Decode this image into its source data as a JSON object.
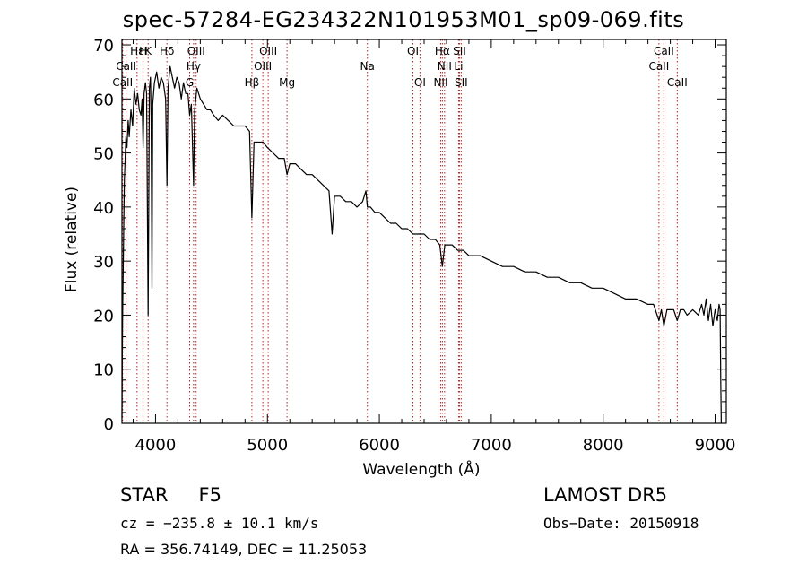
{
  "chart_data": {
    "type": "line",
    "title": "spec-57284-EG234322N101953M01_sp09-069.fits",
    "xlabel": "Wavelength (Å)",
    "ylabel": "Flux (relative)",
    "xlim": [
      3700,
      9100
    ],
    "ylim": [
      0,
      71
    ],
    "xticks": [
      4000,
      5000,
      6000,
      7000,
      8000,
      9000
    ],
    "yticks": [
      0,
      10,
      20,
      30,
      40,
      50,
      60,
      70
    ],
    "grid": false,
    "series": [
      {
        "points": [
          [
            3700,
            1
          ],
          [
            3705,
            18
          ],
          [
            3712,
            30
          ],
          [
            3722,
            45
          ],
          [
            3735,
            53
          ],
          [
            3745,
            51
          ],
          [
            3755,
            56
          ],
          [
            3765,
            53
          ],
          [
            3780,
            58
          ],
          [
            3795,
            55
          ],
          [
            3810,
            62
          ],
          [
            3825,
            59
          ],
          [
            3840,
            61
          ],
          [
            3855,
            58
          ],
          [
            3870,
            57
          ],
          [
            3880,
            60
          ],
          [
            3889,
            51
          ],
          [
            3898,
            61
          ],
          [
            3910,
            63
          ],
          [
            3920,
            61
          ],
          [
            3934,
            20
          ],
          [
            3945,
            62
          ],
          [
            3955,
            64
          ],
          [
            3960,
            57
          ],
          [
            3968,
            25
          ],
          [
            3975,
            59
          ],
          [
            3990,
            63
          ],
          [
            4010,
            65
          ],
          [
            4030,
            62
          ],
          [
            4050,
            64
          ],
          [
            4070,
            63
          ],
          [
            4090,
            60
          ],
          [
            4102,
            44
          ],
          [
            4112,
            62
          ],
          [
            4130,
            66
          ],
          [
            4150,
            64
          ],
          [
            4170,
            62
          ],
          [
            4190,
            64
          ],
          [
            4210,
            63
          ],
          [
            4230,
            60
          ],
          [
            4250,
            63
          ],
          [
            4270,
            61
          ],
          [
            4290,
            61
          ],
          [
            4305,
            57
          ],
          [
            4320,
            59
          ],
          [
            4340,
            44
          ],
          [
            4350,
            58
          ],
          [
            4370,
            62
          ],
          [
            4400,
            60
          ],
          [
            4430,
            59
          ],
          [
            4460,
            58
          ],
          [
            4490,
            58
          ],
          [
            4520,
            57
          ],
          [
            4560,
            56
          ],
          [
            4600,
            57
          ],
          [
            4650,
            56
          ],
          [
            4700,
            55
          ],
          [
            4750,
            55
          ],
          [
            4800,
            55
          ],
          [
            4840,
            54
          ],
          [
            4861,
            38
          ],
          [
            4880,
            52
          ],
          [
            4920,
            52
          ],
          [
            4960,
            52
          ],
          [
            5000,
            51
          ],
          [
            5050,
            50
          ],
          [
            5100,
            49
          ],
          [
            5150,
            49
          ],
          [
            5175,
            46
          ],
          [
            5200,
            48
          ],
          [
            5250,
            48
          ],
          [
            5300,
            47
          ],
          [
            5350,
            46
          ],
          [
            5400,
            46
          ],
          [
            5450,
            45
          ],
          [
            5500,
            44
          ],
          [
            5550,
            43
          ],
          [
            5578,
            35
          ],
          [
            5600,
            42
          ],
          [
            5650,
            42
          ],
          [
            5700,
            41
          ],
          [
            5750,
            41
          ],
          [
            5800,
            40
          ],
          [
            5850,
            41
          ],
          [
            5880,
            43
          ],
          [
            5893,
            40
          ],
          [
            5920,
            40
          ],
          [
            5960,
            39
          ],
          [
            6000,
            39
          ],
          [
            6050,
            38
          ],
          [
            6100,
            37
          ],
          [
            6150,
            37
          ],
          [
            6200,
            36
          ],
          [
            6250,
            36
          ],
          [
            6300,
            35
          ],
          [
            6350,
            35
          ],
          [
            6400,
            35
          ],
          [
            6450,
            34
          ],
          [
            6500,
            34
          ],
          [
            6540,
            33
          ],
          [
            6563,
            29
          ],
          [
            6585,
            33
          ],
          [
            6620,
            33
          ],
          [
            6650,
            33
          ],
          [
            6700,
            32
          ],
          [
            6750,
            32
          ],
          [
            6800,
            31
          ],
          [
            6900,
            31
          ],
          [
            7000,
            30
          ],
          [
            7100,
            29
          ],
          [
            7200,
            29
          ],
          [
            7300,
            28
          ],
          [
            7400,
            28
          ],
          [
            7500,
            27
          ],
          [
            7600,
            27
          ],
          [
            7700,
            26
          ],
          [
            7800,
            26
          ],
          [
            7900,
            25
          ],
          [
            8000,
            25
          ],
          [
            8100,
            24
          ],
          [
            8200,
            23
          ],
          [
            8300,
            23
          ],
          [
            8400,
            22
          ],
          [
            8450,
            22
          ],
          [
            8498,
            19
          ],
          [
            8520,
            21
          ],
          [
            8542,
            18
          ],
          [
            8570,
            21
          ],
          [
            8600,
            21
          ],
          [
            8630,
            21
          ],
          [
            8662,
            19
          ],
          [
            8690,
            21
          ],
          [
            8720,
            21
          ],
          [
            8750,
            20
          ],
          [
            8800,
            21
          ],
          [
            8850,
            20
          ],
          [
            8880,
            22
          ],
          [
            8900,
            20
          ],
          [
            8920,
            23
          ],
          [
            8940,
            19
          ],
          [
            8960,
            22
          ],
          [
            8980,
            18
          ],
          [
            9000,
            21
          ],
          [
            9020,
            19
          ],
          [
            9035,
            22
          ],
          [
            9045,
            21
          ],
          [
            9050,
            8
          ],
          [
            9055,
            0
          ]
        ]
      }
    ],
    "lines": [
      {
        "label": "CaII",
        "wavelength": 3706,
        "row": 2
      },
      {
        "label": "CaII",
        "wavelength": 3737,
        "row": 1
      },
      {
        "label": "Hε",
        "wavelength": 3835,
        "row": 0
      },
      {
        "label": "H",
        "wavelength": 3889,
        "row": 0
      },
      {
        "label": "K",
        "wavelength": 3934,
        "row": 0
      },
      {
        "label": "Hδ",
        "wavelength": 4102,
        "row": 0
      },
      {
        "label": "G",
        "wavelength": 4305,
        "row": 2
      },
      {
        "label": "Hγ",
        "wavelength": 4340,
        "row": 1
      },
      {
        "label": "OIII",
        "wavelength": 4363,
        "row": 0
      },
      {
        "label": "Hβ",
        "wavelength": 4861,
        "row": 2
      },
      {
        "label": "OIII",
        "wavelength": 4959,
        "row": 1
      },
      {
        "label": "OIII",
        "wavelength": 5007,
        "row": 0
      },
      {
        "label": "Mg",
        "wavelength": 5175,
        "row": 2
      },
      {
        "label": "Na",
        "wavelength": 5893,
        "row": 1
      },
      {
        "label": "OI",
        "wavelength": 6300,
        "row": 0
      },
      {
        "label": "OI",
        "wavelength": 6363,
        "row": 2
      },
      {
        "label": "NII",
        "wavelength": 6548,
        "row": 2
      },
      {
        "label": "Hα",
        "wavelength": 6563,
        "row": 0
      },
      {
        "label": "NII",
        "wavelength": 6583,
        "row": 1
      },
      {
        "label": "Li",
        "wavelength": 6708,
        "row": 1
      },
      {
        "label": "SII",
        "wavelength": 6716,
        "row": 0
      },
      {
        "label": "SII",
        "wavelength": 6731,
        "row": 2
      },
      {
        "label": "CaII",
        "wavelength": 8498,
        "row": 1
      },
      {
        "label": "CaII",
        "wavelength": 8542,
        "row": 0
      },
      {
        "label": "CaII",
        "wavelength": 8662,
        "row": 2
      }
    ],
    "colors": {
      "spectrum": "#000000",
      "lines": "#b22222"
    }
  },
  "info": {
    "class": "STAR",
    "subclass": "F5",
    "survey": "LAMOST DR5",
    "cz": "cz = −235.8 ± 10.1 km/s",
    "obs_date": "Obs−Date: 20150918",
    "radec": "RA = 356.74149, DEC =  11.25053"
  }
}
